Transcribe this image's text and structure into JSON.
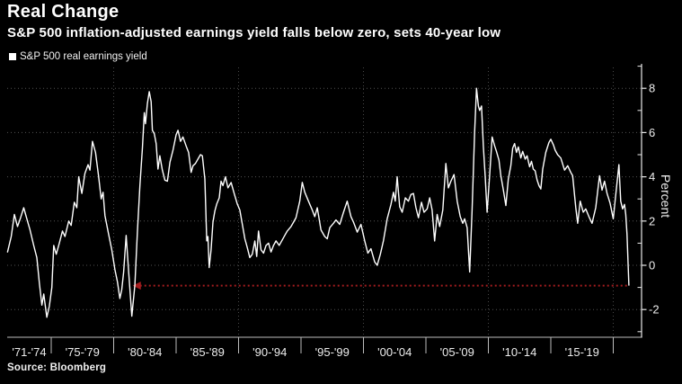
{
  "header": {
    "title": "Real Change",
    "subtitle": "S&P 500 inflation-adjusted earnings yield falls below zero, sets 40-year low"
  },
  "legend": {
    "label": "S&P 500 real earnings yield",
    "marker_color": "#ffffff"
  },
  "source": "Source: Bloomberg",
  "colors": {
    "background": "#000000",
    "series_line": "#ffffff",
    "annotation_red": "#a41d1f",
    "gridline": "#525252",
    "axis": "#bdbdbd",
    "tick_text": "#ededed"
  },
  "chart_data": {
    "type": "line",
    "title": "Real Change",
    "subtitle": "S&P 500 inflation-adjusted earnings yield falls below zero, sets 40-year low",
    "ylabel": "Percent",
    "xlabel": "",
    "grid": true,
    "legend_position": "top-left",
    "ylim": [
      -3.3,
      9.1
    ],
    "xlim": [
      1971.5,
      2022.3
    ],
    "y_ticks_major": [
      8,
      6,
      4,
      2,
      0,
      -2
    ],
    "y_ticks_minor": [
      9,
      7,
      5,
      3,
      1,
      -1,
      -3
    ],
    "x_tick_labels": [
      "'71-'74",
      "'75-'79",
      "'80-'84",
      "'85-'89",
      "'90-'94",
      "'95-'99",
      "'00-'04",
      "'05-'09",
      "'10-'14",
      "'15-'19"
    ],
    "x_tick_boundaries": [
      1975,
      1980,
      1985,
      1990,
      1995,
      2000,
      2005,
      2010,
      2015,
      2020
    ],
    "x_gridline_years": [
      1980,
      1990,
      2000,
      2010,
      2020
    ],
    "annotation": {
      "type": "dotted-arrow-line",
      "meaning": "prior low reference, ~40 years ago, pointed at 1982 trough and matched by 2021 drop",
      "value": -0.92,
      "x_arrow_tip_year": 1981.6,
      "x_end_year": 2021.2,
      "color": "#a41d1f"
    },
    "series": [
      {
        "name": "S&P 500 real earnings yield",
        "color": "#ffffff",
        "points": [
          [
            1971.5,
            0.6
          ],
          [
            1971.8,
            1.3
          ],
          [
            1972.05,
            2.3
          ],
          [
            1972.3,
            1.75
          ],
          [
            1972.55,
            2.15
          ],
          [
            1972.8,
            2.6
          ],
          [
            1973.0,
            2.2
          ],
          [
            1973.3,
            1.6
          ],
          [
            1973.6,
            0.9
          ],
          [
            1973.85,
            0.35
          ],
          [
            1974.05,
            -0.8
          ],
          [
            1974.25,
            -1.8
          ],
          [
            1974.4,
            -1.3
          ],
          [
            1974.65,
            -2.35
          ],
          [
            1974.85,
            -1.85
          ],
          [
            1975.05,
            -1.0
          ],
          [
            1975.2,
            0.9
          ],
          [
            1975.4,
            0.5
          ],
          [
            1975.65,
            1.0
          ],
          [
            1975.9,
            1.55
          ],
          [
            1976.1,
            1.3
          ],
          [
            1976.4,
            2.0
          ],
          [
            1976.6,
            1.8
          ],
          [
            1976.85,
            2.85
          ],
          [
            1977.05,
            2.6
          ],
          [
            1977.2,
            4.0
          ],
          [
            1977.45,
            3.25
          ],
          [
            1977.7,
            4.15
          ],
          [
            1977.95,
            4.55
          ],
          [
            1978.1,
            4.3
          ],
          [
            1978.3,
            5.6
          ],
          [
            1978.55,
            5.1
          ],
          [
            1978.8,
            4.0
          ],
          [
            1979.0,
            3.0
          ],
          [
            1979.15,
            3.3
          ],
          [
            1979.3,
            2.25
          ],
          [
            1979.6,
            1.4
          ],
          [
            1979.85,
            0.7
          ],
          [
            1980.1,
            -0.2
          ],
          [
            1980.3,
            -0.75
          ],
          [
            1980.5,
            -1.5
          ],
          [
            1980.65,
            -1.1
          ],
          [
            1980.8,
            -0.3
          ],
          [
            1981.0,
            1.35
          ],
          [
            1981.2,
            -0.3
          ],
          [
            1981.45,
            -2.3
          ],
          [
            1981.7,
            -0.9
          ],
          [
            1981.9,
            1.5
          ],
          [
            1982.1,
            3.6
          ],
          [
            1982.3,
            5.3
          ],
          [
            1982.45,
            6.9
          ],
          [
            1982.55,
            6.4
          ],
          [
            1982.7,
            7.3
          ],
          [
            1982.85,
            7.85
          ],
          [
            1983.0,
            7.4
          ],
          [
            1983.1,
            6.1
          ],
          [
            1983.25,
            5.95
          ],
          [
            1983.4,
            5.5
          ],
          [
            1983.55,
            4.35
          ],
          [
            1983.7,
            4.95
          ],
          [
            1983.9,
            4.3
          ],
          [
            1984.1,
            3.85
          ],
          [
            1984.3,
            3.8
          ],
          [
            1984.5,
            4.65
          ],
          [
            1984.75,
            5.2
          ],
          [
            1985.0,
            5.9
          ],
          [
            1985.15,
            6.1
          ],
          [
            1985.35,
            5.6
          ],
          [
            1985.55,
            5.8
          ],
          [
            1985.8,
            5.4
          ],
          [
            1986.0,
            5.1
          ],
          [
            1986.2,
            4.2
          ],
          [
            1986.35,
            4.5
          ],
          [
            1986.55,
            4.6
          ],
          [
            1986.75,
            4.8
          ],
          [
            1986.95,
            5.0
          ],
          [
            1987.1,
            4.95
          ],
          [
            1987.3,
            3.9
          ],
          [
            1987.45,
            1.1
          ],
          [
            1987.55,
            1.3
          ],
          [
            1987.65,
            -0.1
          ],
          [
            1987.8,
            0.7
          ],
          [
            1987.95,
            1.95
          ],
          [
            1988.1,
            2.45
          ],
          [
            1988.25,
            2.77
          ],
          [
            1988.45,
            3.05
          ],
          [
            1988.6,
            3.8
          ],
          [
            1988.75,
            3.6
          ],
          [
            1988.95,
            4.0
          ],
          [
            1989.15,
            3.5
          ],
          [
            1989.4,
            3.74
          ],
          [
            1989.65,
            3.25
          ],
          [
            1989.9,
            2.77
          ],
          [
            1990.1,
            2.5
          ],
          [
            1990.3,
            1.85
          ],
          [
            1990.5,
            1.2
          ],
          [
            1990.7,
            0.8
          ],
          [
            1990.9,
            0.35
          ],
          [
            1991.1,
            0.5
          ],
          [
            1991.3,
            1.1
          ],
          [
            1991.45,
            0.4
          ],
          [
            1991.6,
            1.55
          ],
          [
            1991.8,
            0.7
          ],
          [
            1992.0,
            0.55
          ],
          [
            1992.2,
            0.9
          ],
          [
            1992.4,
            1.0
          ],
          [
            1992.6,
            0.6
          ],
          [
            1992.8,
            0.9
          ],
          [
            1993.0,
            1.1
          ],
          [
            1993.25,
            0.9
          ],
          [
            1993.5,
            1.15
          ],
          [
            1993.7,
            1.35
          ],
          [
            1993.9,
            1.55
          ],
          [
            1994.2,
            1.75
          ],
          [
            1994.4,
            1.95
          ],
          [
            1994.6,
            2.15
          ],
          [
            1994.9,
            2.9
          ],
          [
            1995.1,
            3.75
          ],
          [
            1995.3,
            3.3
          ],
          [
            1995.6,
            2.9
          ],
          [
            1995.9,
            2.5
          ],
          [
            1996.1,
            2.2
          ],
          [
            1996.3,
            2.6
          ],
          [
            1996.6,
            1.6
          ],
          [
            1996.9,
            1.3
          ],
          [
            1997.1,
            1.2
          ],
          [
            1997.3,
            1.7
          ],
          [
            1997.6,
            1.9
          ],
          [
            1997.8,
            2.05
          ],
          [
            1998.1,
            1.85
          ],
          [
            1998.4,
            2.4
          ],
          [
            1998.7,
            2.9
          ],
          [
            1999.0,
            2.2
          ],
          [
            1999.2,
            1.95
          ],
          [
            1999.5,
            1.5
          ],
          [
            1999.8,
            1.85
          ],
          [
            2000.1,
            1.1
          ],
          [
            2000.35,
            0.55
          ],
          [
            2000.6,
            0.75
          ],
          [
            2000.9,
            0.15
          ],
          [
            2001.1,
            0.0
          ],
          [
            2001.35,
            0.5
          ],
          [
            2001.6,
            1.1
          ],
          [
            2001.9,
            2.1
          ],
          [
            2002.2,
            2.75
          ],
          [
            2002.4,
            3.3
          ],
          [
            2002.55,
            2.9
          ],
          [
            2002.7,
            4.0
          ],
          [
            2002.9,
            2.65
          ],
          [
            2003.1,
            2.4
          ],
          [
            2003.35,
            3.05
          ],
          [
            2003.6,
            2.9
          ],
          [
            2003.8,
            3.2
          ],
          [
            2004.0,
            3.25
          ],
          [
            2004.2,
            2.6
          ],
          [
            2004.4,
            2.15
          ],
          [
            2004.65,
            2.85
          ],
          [
            2004.85,
            2.4
          ],
          [
            2005.1,
            2.55
          ],
          [
            2005.3,
            3.05
          ],
          [
            2005.5,
            2.5
          ],
          [
            2005.7,
            1.1
          ],
          [
            2005.9,
            2.3
          ],
          [
            2006.1,
            1.75
          ],
          [
            2006.35,
            2.5
          ],
          [
            2006.6,
            4.6
          ],
          [
            2006.8,
            3.5
          ],
          [
            2007.0,
            3.8
          ],
          [
            2007.25,
            4.1
          ],
          [
            2007.5,
            2.9
          ],
          [
            2007.75,
            2.2
          ],
          [
            2007.95,
            1.9
          ],
          [
            2008.1,
            2.1
          ],
          [
            2008.3,
            1.7
          ],
          [
            2008.5,
            -0.3
          ],
          [
            2008.7,
            2.5
          ],
          [
            2008.9,
            6.0
          ],
          [
            2009.05,
            8.0
          ],
          [
            2009.2,
            7.2
          ],
          [
            2009.3,
            7.0
          ],
          [
            2009.45,
            7.2
          ],
          [
            2009.6,
            5.4
          ],
          [
            2009.75,
            4.0
          ],
          [
            2009.9,
            2.4
          ],
          [
            2010.1,
            4.05
          ],
          [
            2010.3,
            5.8
          ],
          [
            2010.5,
            5.4
          ],
          [
            2010.65,
            5.15
          ],
          [
            2010.85,
            4.75
          ],
          [
            2011.0,
            4.05
          ],
          [
            2011.2,
            3.4
          ],
          [
            2011.4,
            2.7
          ],
          [
            2011.6,
            3.9
          ],
          [
            2011.8,
            4.5
          ],
          [
            2011.95,
            5.3
          ],
          [
            2012.1,
            5.5
          ],
          [
            2012.25,
            5.1
          ],
          [
            2012.4,
            5.35
          ],
          [
            2012.6,
            4.85
          ],
          [
            2012.75,
            5.15
          ],
          [
            2012.95,
            4.8
          ],
          [
            2013.1,
            4.95
          ],
          [
            2013.3,
            4.45
          ],
          [
            2013.45,
            4.7
          ],
          [
            2013.6,
            4.35
          ],
          [
            2013.75,
            4.27
          ],
          [
            2013.9,
            3.86
          ],
          [
            2014.05,
            3.6
          ],
          [
            2014.2,
            3.45
          ],
          [
            2014.35,
            4.35
          ],
          [
            2014.6,
            5.1
          ],
          [
            2014.85,
            5.55
          ],
          [
            2015.0,
            5.7
          ],
          [
            2015.2,
            5.45
          ],
          [
            2015.35,
            5.2
          ],
          [
            2015.55,
            5.0
          ],
          [
            2015.8,
            4.85
          ],
          [
            2016.1,
            4.3
          ],
          [
            2016.35,
            4.5
          ],
          [
            2016.6,
            4.2
          ],
          [
            2016.75,
            4.05
          ],
          [
            2017.0,
            2.6
          ],
          [
            2017.15,
            1.9
          ],
          [
            2017.35,
            2.9
          ],
          [
            2017.6,
            2.4
          ],
          [
            2017.8,
            2.55
          ],
          [
            2018.05,
            2.2
          ],
          [
            2018.3,
            1.9
          ],
          [
            2018.6,
            2.6
          ],
          [
            2018.9,
            4.05
          ],
          [
            2019.1,
            3.4
          ],
          [
            2019.3,
            3.8
          ],
          [
            2019.5,
            3.25
          ],
          [
            2019.75,
            2.8
          ],
          [
            2020.0,
            2.1
          ],
          [
            2020.2,
            3.2
          ],
          [
            2020.45,
            4.55
          ],
          [
            2020.6,
            2.9
          ],
          [
            2020.75,
            2.55
          ],
          [
            2020.9,
            2.75
          ],
          [
            2021.0,
            2.3
          ],
          [
            2021.1,
            1.4
          ],
          [
            2021.25,
            -0.9
          ]
        ]
      }
    ]
  }
}
